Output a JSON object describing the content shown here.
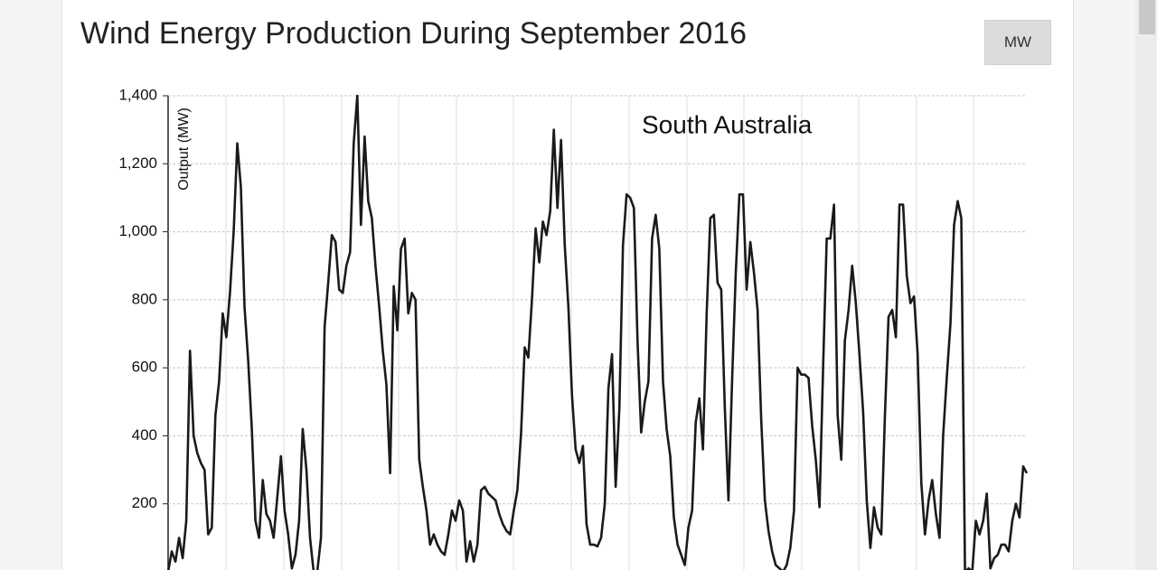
{
  "header": {
    "title": "Wind Energy Production During September 2016",
    "unit_button": "MW"
  },
  "chart_data": {
    "type": "line",
    "annotation": "South Australia",
    "y_label": "Output (MW)",
    "ylim": [
      0,
      1400
    ],
    "yticks": [
      200,
      400,
      600,
      800,
      {
        "value": 1000,
        "label": "1,000"
      },
      {
        "value": 1200,
        "label": "1,200"
      },
      {
        "value": 1400,
        "label": "1,400"
      }
    ],
    "grid": true,
    "series": [
      {
        "name": "South Australia",
        "color": "#1a1a1a",
        "values": [
          0,
          60,
          30,
          100,
          40,
          150,
          650,
          400,
          350,
          320,
          300,
          110,
          130,
          460,
          560,
          760,
          690,
          820,
          1000,
          1260,
          1130,
          780,
          620,
          420,
          150,
          100,
          270,
          170,
          150,
          100,
          220,
          340,
          180,
          110,
          10,
          50,
          150,
          420,
          300,
          100,
          0,
          0,
          100,
          720,
          850,
          990,
          970,
          830,
          820,
          900,
          940,
          1260,
          1400,
          1020,
          1280,
          1090,
          1040,
          900,
          780,
          650,
          550,
          290,
          840,
          710,
          950,
          980,
          760,
          820,
          800,
          330,
          250,
          180,
          80,
          110,
          80,
          60,
          50,
          110,
          180,
          150,
          210,
          180,
          30,
          90,
          30,
          80,
          240,
          250,
          230,
          220,
          210,
          170,
          140,
          120,
          110,
          180,
          240,
          410,
          660,
          630,
          800,
          1010,
          910,
          1030,
          990,
          1060,
          1300,
          1070,
          1270,
          960,
          780,
          520,
          360,
          320,
          370,
          140,
          80,
          80,
          75,
          100,
          200,
          540,
          640,
          250,
          480,
          960,
          1110,
          1100,
          1070,
          680,
          410,
          500,
          560,
          980,
          1050,
          950,
          560,
          420,
          340,
          160,
          80,
          50,
          20,
          130,
          180,
          440,
          510,
          360,
          760,
          1040,
          1050,
          850,
          830,
          480,
          210,
          560,
          880,
          1110,
          1110,
          830,
          970,
          880,
          770,
          450,
          210,
          120,
          60,
          20,
          10,
          0,
          20,
          70,
          180,
          600,
          580,
          580,
          570,
          430,
          330,
          190,
          600,
          980,
          980,
          1080,
          460,
          330,
          680,
          770,
          900,
          790,
          640,
          470,
          210,
          70,
          190,
          130,
          110,
          460,
          750,
          770,
          690,
          1080,
          1080,
          870,
          790,
          810,
          640,
          260,
          110,
          210,
          270,
          170,
          100,
          400,
          570,
          730,
          1020,
          1090,
          1040,
          0,
          10,
          0,
          150,
          110,
          150,
          230,
          10,
          40,
          50,
          80,
          80,
          60,
          150,
          200,
          160,
          310,
          290
        ]
      }
    ]
  }
}
